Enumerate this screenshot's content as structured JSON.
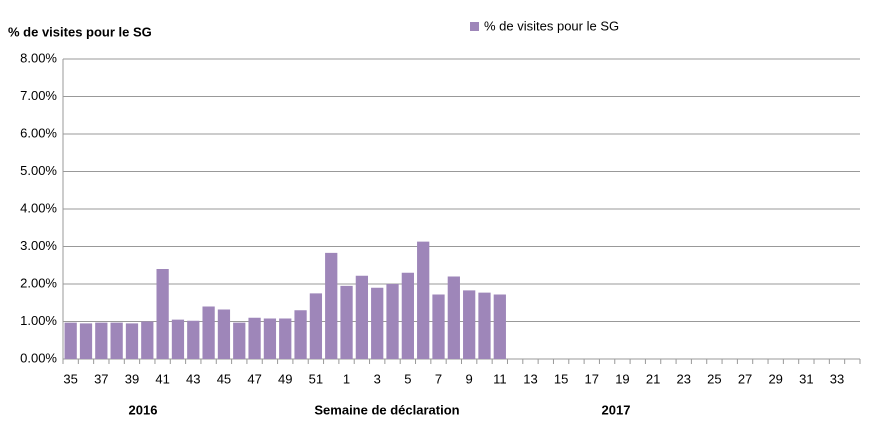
{
  "chart_data": {
    "type": "bar",
    "y_axis_title": "% de visites pour le SG",
    "x_axis_title": "Semaine de déclaration",
    "annotations": [
      "2016",
      "2017"
    ],
    "categories": [
      "35",
      null,
      "37",
      null,
      "39",
      null,
      "41",
      null,
      "43",
      null,
      "45",
      null,
      "47",
      null,
      "49",
      null,
      "51",
      null,
      "1",
      null,
      "3",
      null,
      "5",
      null,
      "7",
      null,
      "9",
      null,
      "11",
      null,
      "13",
      null,
      "15",
      null,
      "17",
      null,
      "19",
      null,
      "21",
      null,
      "23",
      null,
      "25",
      null,
      "27",
      null,
      "29",
      null,
      "31",
      null,
      "33",
      null
    ],
    "series": [
      {
        "name": "% de visites pour le SG",
        "color": "#9e86b9",
        "values": [
          0.97,
          0.95,
          0.97,
          0.97,
          0.95,
          1.0,
          2.4,
          1.05,
          1.02,
          1.4,
          1.32,
          0.97,
          1.1,
          1.08,
          1.08,
          1.3,
          1.75,
          2.83,
          1.95,
          2.22,
          1.9,
          2.0,
          2.3,
          3.13,
          1.72,
          2.2,
          1.83,
          1.77,
          1.72,
          null,
          null,
          null,
          null,
          null,
          null,
          null,
          null,
          null,
          null,
          null,
          null,
          null,
          null,
          null,
          null,
          null,
          null,
          null,
          null,
          null,
          null,
          null
        ]
      }
    ],
    "ylim": [
      0,
      8
    ],
    "yticks": [
      {
        "value": 0,
        "label": "0.00%"
      },
      {
        "value": 1,
        "label": "1.00%"
      },
      {
        "value": 2,
        "label": "2.00%"
      },
      {
        "value": 3,
        "label": "3.00%"
      },
      {
        "value": 4,
        "label": "4.00%"
      },
      {
        "value": 5,
        "label": "5.00%"
      },
      {
        "value": 6,
        "label": "6.00%"
      },
      {
        "value": 7,
        "label": "7.00%"
      },
      {
        "value": 8,
        "label": "8.00%"
      }
    ],
    "grid": true
  }
}
